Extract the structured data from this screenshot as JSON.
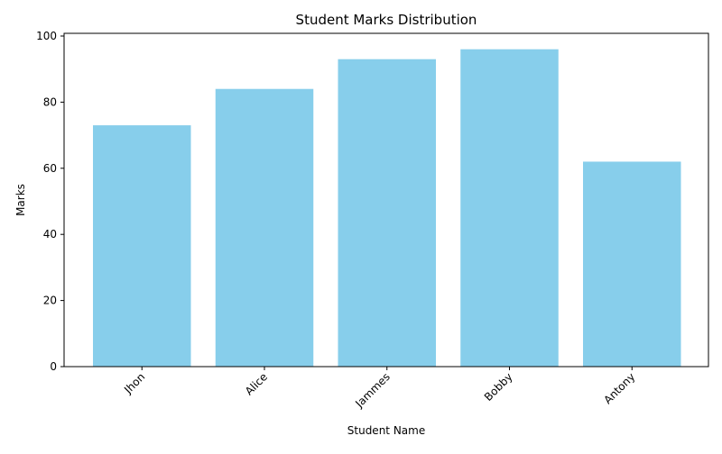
{
  "chart_data": {
    "type": "bar",
    "title": "Student Marks Distribution",
    "xlabel": "Student Name",
    "ylabel": "Marks",
    "categories": [
      "Jhon",
      "Alice",
      "Jammes",
      "Bobby",
      "Antony"
    ],
    "values": [
      73,
      84,
      93,
      96,
      62
    ],
    "ylim": [
      0,
      100
    ],
    "yticks": [
      0,
      20,
      40,
      60,
      80,
      100
    ],
    "bar_color": "#87CEEB",
    "grid": false,
    "x_tick_rotation": "45deg"
  }
}
